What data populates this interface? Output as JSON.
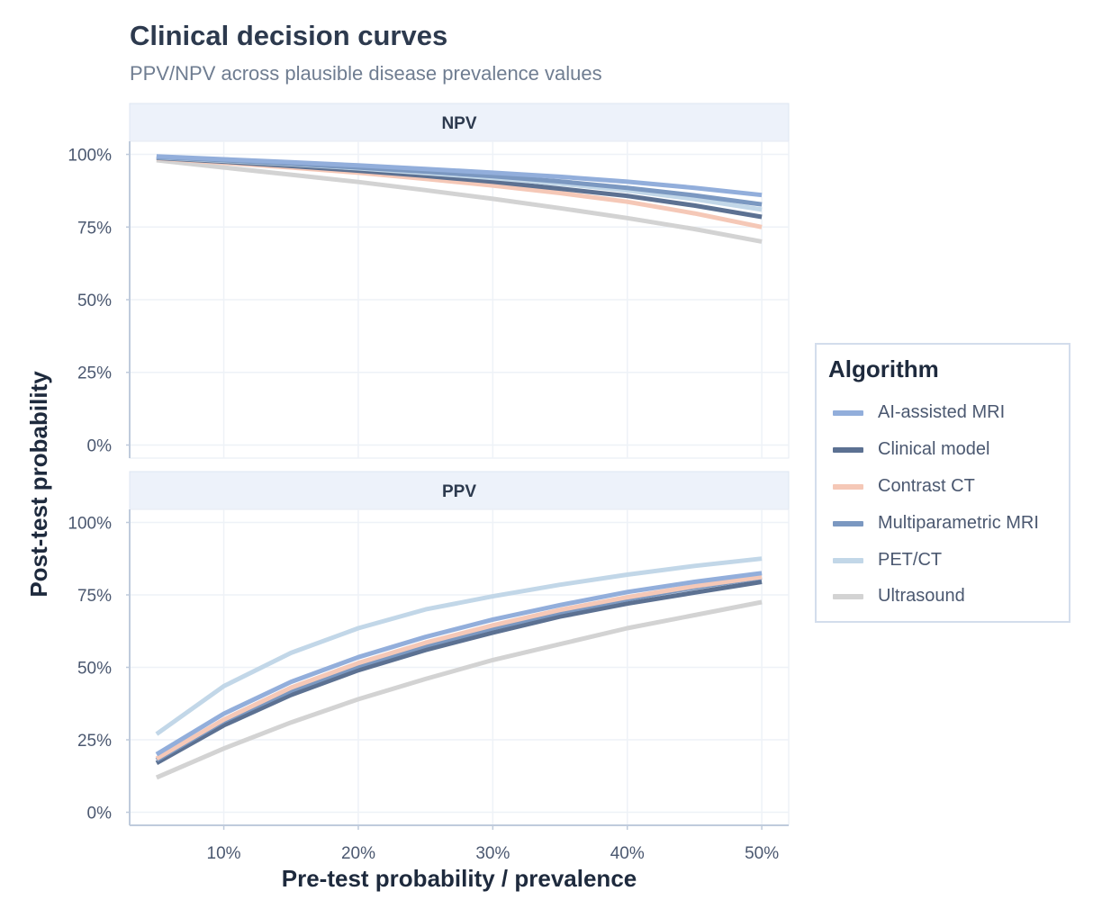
{
  "title": "Clinical decision curves",
  "subtitle": "PPV/NPV across plausible disease prevalence values",
  "chart_data": {
    "type": "line",
    "xlabel": "Pre-test probability / prevalence",
    "ylabel": "Post-test probability",
    "x": [
      0.05,
      0.1,
      0.15,
      0.2,
      0.25,
      0.3,
      0.35,
      0.4,
      0.45,
      0.5
    ],
    "x_ticks": [
      0.1,
      0.2,
      0.3,
      0.4,
      0.5
    ],
    "x_tick_labels": [
      "10%",
      "20%",
      "30%",
      "40%",
      "50%"
    ],
    "xlim": [
      0.03,
      0.52
    ],
    "y_ticks": [
      0,
      0.25,
      0.5,
      0.75,
      1.0
    ],
    "y_tick_labels": [
      "0%",
      "25%",
      "50%",
      "75%",
      "100%"
    ],
    "ylim": [
      -0.045,
      1.045
    ],
    "grid": true,
    "legend_title": "Algorithm",
    "legend_position": "right",
    "series_meta": [
      {
        "name": "AI-assisted MRI",
        "color": "#92aedb"
      },
      {
        "name": "Clinical model",
        "color": "#5c7192"
      },
      {
        "name": "Contrast CT",
        "color": "#f5c8b7"
      },
      {
        "name": "Multiparametric MRI",
        "color": "#7b98c1"
      },
      {
        "name": "PET/CT",
        "color": "#c2d7e8"
      },
      {
        "name": "Ultrasound",
        "color": "#d3d3d3"
      }
    ],
    "panels": [
      {
        "label": "NPV",
        "series": [
          {
            "name": "Ultrasound",
            "values": [
              0.98,
              0.955,
              0.93,
              0.905,
              0.877,
              0.847,
              0.815,
              0.781,
              0.743,
              0.7
            ]
          },
          {
            "name": "Contrast CT",
            "values": [
              0.987,
              0.971,
              0.955,
              0.937,
              0.916,
              0.893,
              0.867,
              0.837,
              0.797,
              0.75
            ]
          },
          {
            "name": "Clinical model",
            "values": [
              0.988,
              0.975,
              0.96,
              0.944,
              0.926,
              0.906,
              0.882,
              0.857,
              0.824,
              0.785
            ]
          },
          {
            "name": "PET/CT",
            "values": [
              0.99,
              0.978,
              0.966,
              0.952,
              0.936,
              0.919,
              0.899,
              0.876,
              0.846,
              0.81
            ]
          },
          {
            "name": "Multiparametric MRI",
            "values": [
              0.991,
              0.98,
              0.968,
              0.955,
              0.941,
              0.925,
              0.907,
              0.885,
              0.859,
              0.828
            ]
          },
          {
            "name": "AI-assisted MRI",
            "values": [
              0.993,
              0.983,
              0.973,
              0.962,
              0.95,
              0.937,
              0.923,
              0.906,
              0.885,
              0.86
            ]
          }
        ]
      },
      {
        "label": "PPV",
        "series": [
          {
            "name": "Ultrasound",
            "values": [
              0.12,
              0.22,
              0.31,
              0.39,
              0.46,
              0.525,
              0.58,
              0.635,
              0.68,
              0.725
            ]
          },
          {
            "name": "Clinical model",
            "values": [
              0.17,
              0.3,
              0.405,
              0.49,
              0.56,
              0.62,
              0.675,
              0.72,
              0.758,
              0.795
            ]
          },
          {
            "name": "Multiparametric MRI",
            "values": [
              0.18,
              0.315,
              0.42,
              0.505,
              0.575,
              0.635,
              0.69,
              0.735,
              0.775,
              0.81
            ]
          },
          {
            "name": "Contrast CT",
            "values": [
              0.185,
              0.32,
              0.43,
              0.515,
              0.585,
              0.645,
              0.698,
              0.742,
              0.78,
              0.812
            ]
          },
          {
            "name": "AI-assisted MRI",
            "values": [
              0.2,
              0.34,
              0.45,
              0.535,
              0.605,
              0.665,
              0.715,
              0.76,
              0.795,
              0.825
            ]
          },
          {
            "name": "PET/CT",
            "values": [
              0.27,
              0.435,
              0.55,
              0.635,
              0.7,
              0.745,
              0.785,
              0.82,
              0.85,
              0.875
            ]
          }
        ]
      }
    ]
  }
}
